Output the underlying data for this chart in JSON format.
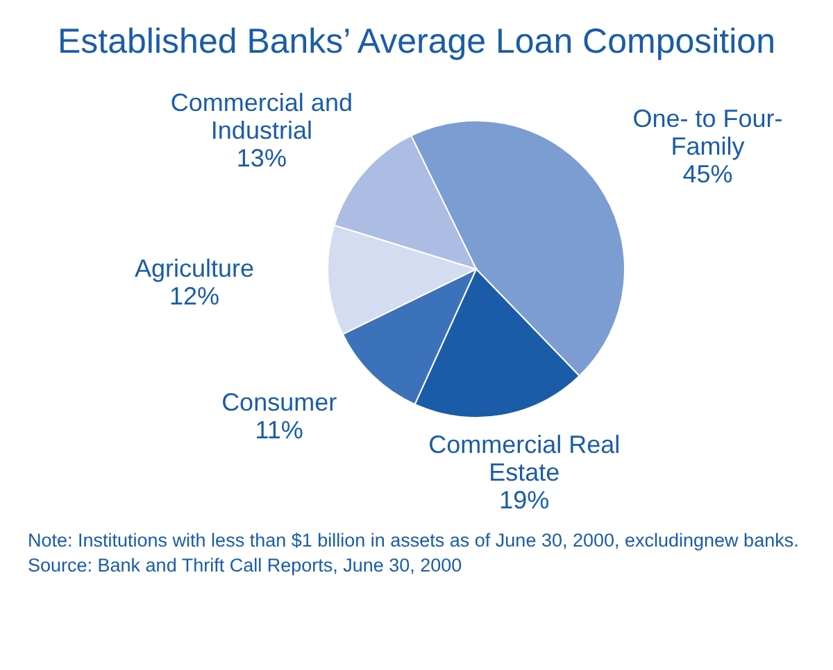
{
  "chart_data": {
    "type": "pie",
    "title": "Established Banks’ Average Loan Composition",
    "categories": [
      "One- to Four-Family",
      "Commercial Real Estate",
      "Consumer",
      "Agriculture",
      "Commercial and Industrial"
    ],
    "values": [
      45,
      19,
      11,
      12,
      13
    ],
    "colors": [
      "#7b9dd1",
      "#1a5ca8",
      "#3c72b9",
      "#d3dcf0",
      "#abbde2"
    ],
    "value_labels": [
      "45%",
      "19%",
      "11%",
      "12%",
      "13%"
    ],
    "legend": false,
    "annotations": [
      "Note: Institutions with less than $1 billion in assets as of June 30, 2000, excludingnew banks.",
      "Source: Bank and Thrift Call Reports, June 30, 2000"
    ]
  }
}
